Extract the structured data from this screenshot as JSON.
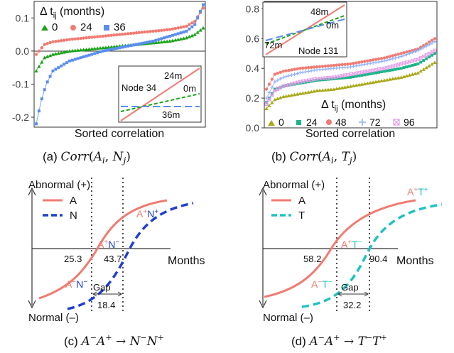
{
  "colors": {
    "A": "#f07b72",
    "N": "#1f3fd1",
    "T": "#1fc2c2",
    "c0": "#1aa31a",
    "c24": "#f07b72",
    "c36": "#5a8df0",
    "t0": "#a8a818",
    "t24": "#1fb48a",
    "t48": "#f07b72",
    "t72": "#8fb0ff",
    "t96": "#e39be8"
  },
  "panel_a": {
    "caption_prefix": "(a) ",
    "caption_math": "Corr(A_i, N_j)",
    "xlabel": "Sorted correlation",
    "legend_title": "Δ t_ij (months)",
    "legend_items": [
      "0",
      "24",
      "36"
    ],
    "yticks": [
      "0.1",
      "0.0",
      "-0.1",
      "-0.2"
    ],
    "inset": {
      "node": "Node 34",
      "labels": [
        "24m",
        "0m",
        "36m"
      ]
    }
  },
  "panel_b": {
    "caption_prefix": "(b) ",
    "caption_math": "Corr(A_i, T_j)",
    "xlabel": "Sorted correlation",
    "legend_title": "Δ t_ij (months)",
    "legend_items": [
      "0",
      "24",
      "48",
      "72",
      "96"
    ],
    "yticks": [
      "0.8",
      "0.6",
      "0.4",
      "0.2",
      "0.0"
    ],
    "inset": {
      "node": "Node 131",
      "labels": [
        "48m",
        "0m",
        "72m"
      ]
    }
  },
  "panel_c": {
    "caption_prefix": "(c) ",
    "caption_math": "A⁻A⁺ → N⁻N⁺",
    "ytop": "Abnormal (+)",
    "ybottom": "Normal (–)",
    "xlabel": "Months",
    "legend": [
      "A",
      "N"
    ],
    "v1": "25.3",
    "v2": "43.7",
    "gap_label": "Gap",
    "gap_value": "18.4",
    "marks": [
      "A⁺N⁺",
      "A⁺N⁻",
      "A⁻N⁻"
    ]
  },
  "panel_d": {
    "caption_prefix": "(d) ",
    "caption_math": "A⁻A⁺ → T⁻T⁺",
    "ytop": "Abnormal (+)",
    "ybottom": "Normal (–)",
    "xlabel": "Months",
    "legend": [
      "A",
      "T"
    ],
    "v1": "58.2",
    "v2": "90.4",
    "gap_label": "Gap",
    "gap_value": "32.2",
    "marks": [
      "A⁺T⁺",
      "A⁺T⁻",
      "A⁻T⁻"
    ]
  },
  "chart_data": [
    {
      "type": "scatter",
      "title": "",
      "xlabel": "Sorted correlation",
      "ylabel": "",
      "ylim": [
        -0.23,
        0.15
      ],
      "legend_placement": "top-left",
      "series": [
        {
          "name": "0",
          "x": [
            0,
            0.05,
            0.1,
            0.2,
            0.3,
            0.4,
            0.5,
            0.6,
            0.7,
            0.8,
            0.9,
            0.95,
            1.0
          ],
          "y": [
            -0.06,
            -0.02,
            -0.01,
            0.0,
            0.005,
            0.01,
            0.015,
            0.02,
            0.025,
            0.03,
            0.04,
            0.05,
            0.07
          ]
        },
        {
          "name": "24",
          "x": [
            0,
            0.05,
            0.1,
            0.2,
            0.3,
            0.4,
            0.5,
            0.6,
            0.7,
            0.8,
            0.9,
            0.95,
            1.0
          ],
          "y": [
            -0.01,
            0.02,
            0.028,
            0.035,
            0.04,
            0.045,
            0.05,
            0.055,
            0.06,
            0.065,
            0.075,
            0.09,
            0.13
          ]
        },
        {
          "name": "36",
          "x": [
            0,
            0.03,
            0.06,
            0.1,
            0.2,
            0.3,
            0.4,
            0.5,
            0.6,
            0.7,
            0.8,
            0.9,
            0.95,
            1.0
          ],
          "y": [
            -0.22,
            -0.15,
            -0.1,
            -0.06,
            -0.03,
            -0.015,
            0.0,
            0.01,
            0.02,
            0.03,
            0.045,
            0.06,
            0.08,
            0.14
          ]
        }
      ]
    },
    {
      "type": "scatter",
      "title": "",
      "xlabel": "Sorted correlation",
      "ylabel": "",
      "ylim": [
        0,
        0.85
      ],
      "legend_placement": "bottom",
      "series": [
        {
          "name": "0",
          "x": [
            0,
            0.05,
            0.1,
            0.2,
            0.3,
            0.4,
            0.5,
            0.6,
            0.7,
            0.8,
            0.9,
            1.0
          ],
          "y": [
            0.13,
            0.19,
            0.21,
            0.23,
            0.25,
            0.26,
            0.28,
            0.3,
            0.32,
            0.34,
            0.37,
            0.44
          ]
        },
        {
          "name": "24",
          "x": [
            0,
            0.05,
            0.1,
            0.2,
            0.3,
            0.4,
            0.5,
            0.6,
            0.7,
            0.8,
            0.9,
            1.0
          ],
          "y": [
            0.17,
            0.26,
            0.28,
            0.3,
            0.32,
            0.33,
            0.34,
            0.36,
            0.38,
            0.4,
            0.43,
            0.5
          ]
        },
        {
          "name": "48",
          "x": [
            0,
            0.05,
            0.1,
            0.2,
            0.3,
            0.4,
            0.5,
            0.6,
            0.7,
            0.8,
            0.9,
            1.0
          ],
          "y": [
            0.26,
            0.36,
            0.38,
            0.4,
            0.41,
            0.42,
            0.43,
            0.45,
            0.47,
            0.5,
            0.53,
            0.6
          ]
        },
        {
          "name": "72",
          "x": [
            0,
            0.05,
            0.1,
            0.2,
            0.3,
            0.4,
            0.5,
            0.6,
            0.7,
            0.8,
            0.9,
            1.0
          ],
          "y": [
            0.2,
            0.31,
            0.34,
            0.37,
            0.39,
            0.4,
            0.41,
            0.43,
            0.45,
            0.48,
            0.52,
            0.58
          ]
        },
        {
          "name": "96",
          "x": [
            0,
            0.05,
            0.1,
            0.2,
            0.3,
            0.4,
            0.5,
            0.6,
            0.7,
            0.8,
            0.9,
            1.0
          ],
          "y": [
            0.16,
            0.25,
            0.28,
            0.31,
            0.33,
            0.34,
            0.36,
            0.38,
            0.4,
            0.43,
            0.46,
            0.52
          ]
        }
      ]
    }
  ]
}
